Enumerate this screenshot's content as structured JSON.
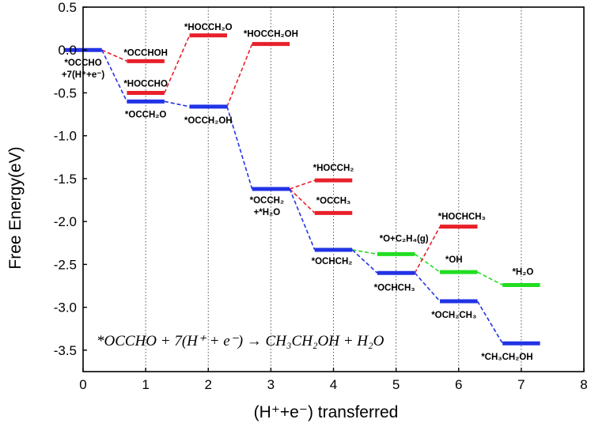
{
  "chart_data": {
    "type": "line",
    "xlabel": "(H⁺+e⁻) transferred",
    "ylabel": "Free Energy(eV)",
    "xlim": [
      0,
      8
    ],
    "ylim": [
      -3.75,
      0.5
    ],
    "xticks": [
      "0",
      "1",
      "2",
      "3",
      "4",
      "5",
      "6",
      "7",
      "8"
    ],
    "yticks": [
      "0.5",
      "0.0",
      "-0.5",
      "-1.0",
      "-1.5",
      "-2.0",
      "-2.5",
      "-3.0",
      "-3.5"
    ],
    "ytick_values": [
      0.5,
      0.0,
      -0.5,
      -1.0,
      -1.5,
      -2.0,
      -2.5,
      -3.0,
      -3.5
    ],
    "vertical_gridlines": [
      1,
      2,
      3,
      4,
      5,
      6,
      7
    ],
    "annotation": "*OCCHO + 7(H⁺ + e⁻) → CH₃CH₂OH + H₂O",
    "colors": {
      "blue": "#2233e6",
      "red": "#e8202a",
      "green": "#22dd22"
    },
    "levels": [
      {
        "id": "L0",
        "step": 0,
        "y": 0.0,
        "color": "blue",
        "label": "*OCCHO\n+7(H⁺+e⁻)"
      },
      {
        "id": "L1a",
        "step": 1,
        "y": -0.13,
        "color": "red",
        "label": "*OCCHOH"
      },
      {
        "id": "L1b",
        "step": 1,
        "y": -0.5,
        "color": "red",
        "label": "*HOCCHO"
      },
      {
        "id": "L1c",
        "step": 1,
        "y": -0.6,
        "color": "blue",
        "label": "*OCCH₂O"
      },
      {
        "id": "L2a",
        "step": 2,
        "y": 0.17,
        "color": "red",
        "label": "*HOCCH₂O"
      },
      {
        "id": "L2b",
        "step": 2,
        "y": -0.66,
        "color": "blue",
        "label": "*OCCH₂OH"
      },
      {
        "id": "L3a",
        "step": 3,
        "y": 0.07,
        "color": "red",
        "label": "*HOCCH₂OH"
      },
      {
        "id": "L3b",
        "step": 3,
        "y": -1.62,
        "color": "blue",
        "label": "*OCCH₂\n+*H₂O"
      },
      {
        "id": "L4a",
        "step": 4,
        "y": -1.52,
        "color": "red",
        "label": "*HOCCH₂"
      },
      {
        "id": "L4b",
        "step": 4,
        "y": -1.9,
        "color": "red",
        "label": "*OCCH₃"
      },
      {
        "id": "L4c",
        "step": 4,
        "y": -2.33,
        "color": "blue",
        "label": "*OCHCH₂"
      },
      {
        "id": "L5a",
        "step": 5,
        "y": -2.38,
        "color": "green",
        "label": "*O+C₂H₄(g)"
      },
      {
        "id": "L5b",
        "step": 5,
        "y": -2.6,
        "color": "blue",
        "label": "*OCHCH₃"
      },
      {
        "id": "L6a",
        "step": 6,
        "y": -2.06,
        "color": "red",
        "label": "*HOCHCH₃"
      },
      {
        "id": "L6b",
        "step": 6,
        "y": -2.59,
        "color": "green",
        "label": "*OH"
      },
      {
        "id": "L6c",
        "step": 6,
        "y": -2.93,
        "color": "blue",
        "label": "*OCH₂CH₃"
      },
      {
        "id": "L7a",
        "step": 7,
        "y": -2.74,
        "color": "green",
        "label": "*H₂O"
      },
      {
        "id": "L7b",
        "step": 7,
        "y": -3.42,
        "color": "blue",
        "label": "*CH₃CH₂OH"
      }
    ],
    "connections": [
      {
        "from": "L0",
        "to": "L1a",
        "color": "red"
      },
      {
        "from": "L0",
        "to": "L1c",
        "color": "blue"
      },
      {
        "from": "L1b",
        "to": "L2a",
        "color": "red"
      },
      {
        "from": "L1c",
        "to": "L2b",
        "color": "blue"
      },
      {
        "from": "L2b",
        "to": "L3a",
        "color": "red"
      },
      {
        "from": "L2b",
        "to": "L3b",
        "color": "blue"
      },
      {
        "from": "L3b",
        "to": "L4a",
        "color": "red"
      },
      {
        "from": "L3b",
        "to": "L4b",
        "color": "red"
      },
      {
        "from": "L3b",
        "to": "L4c",
        "color": "blue"
      },
      {
        "from": "L4c",
        "to": "L5a",
        "color": "green"
      },
      {
        "from": "L4c",
        "to": "L5b",
        "color": "blue"
      },
      {
        "from": "L5a",
        "to": "L6b",
        "color": "green"
      },
      {
        "from": "L5b",
        "to": "L6a",
        "color": "red"
      },
      {
        "from": "L5b",
        "to": "L6c",
        "color": "blue"
      },
      {
        "from": "L6b",
        "to": "L7a",
        "color": "green"
      },
      {
        "from": "L6c",
        "to": "L7b",
        "color": "blue"
      }
    ]
  }
}
